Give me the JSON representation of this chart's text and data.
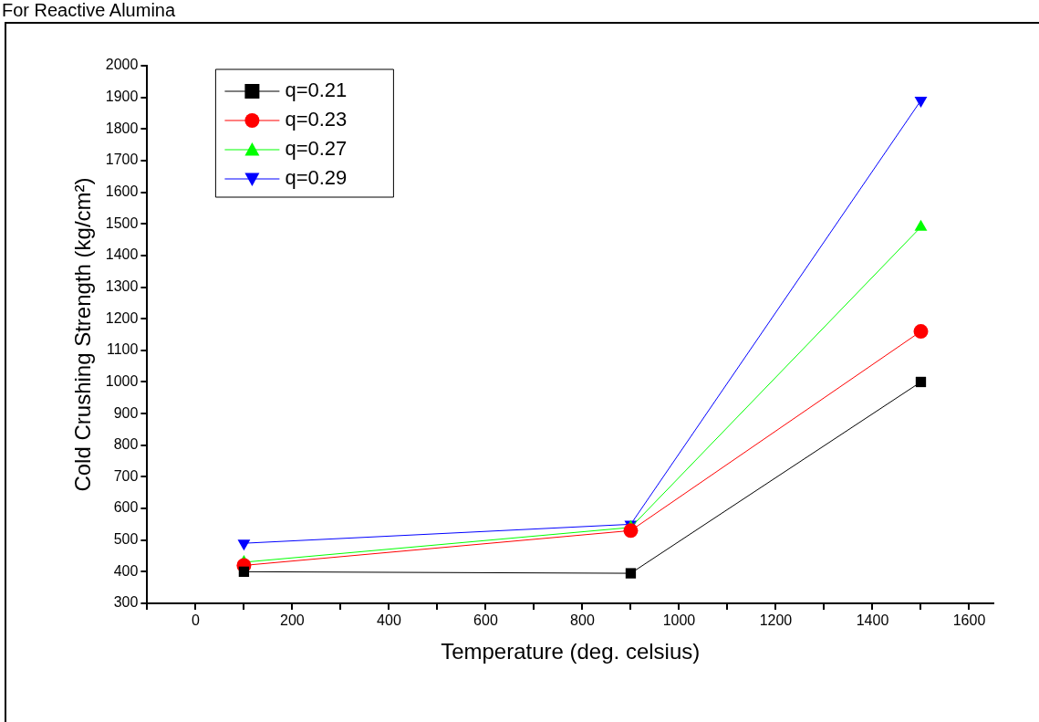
{
  "chart_data": {
    "type": "line",
    "title": "For Reactive Alumina",
    "xlabel": "Temperature (deg. celsius)",
    "ylabel": "Cold Crushing Strength (kg/cm²)",
    "x": [
      100,
      900,
      1500
    ],
    "series": [
      {
        "name": "q=0.21",
        "color": "#000000",
        "marker": "square",
        "values": [
          400,
          395,
          1000
        ]
      },
      {
        "name": "q=0.23",
        "color": "#ff0000",
        "marker": "circle",
        "values": [
          420,
          530,
          1160
        ]
      },
      {
        "name": "q=0.27",
        "color": "#00ff00",
        "marker": "triangle",
        "values": [
          430,
          540,
          1490
        ]
      },
      {
        "name": "q=0.29",
        "color": "#0000ff",
        "marker": "triangle-down",
        "values": [
          490,
          550,
          1890
        ]
      }
    ],
    "xlim": [
      -100,
      1650
    ],
    "xticks": [
      {
        "value": -100,
        "label": null
      },
      0,
      {
        "value": 100,
        "label": null
      },
      200,
      {
        "value": 300,
        "label": null
      },
      400,
      {
        "value": 500,
        "label": null
      },
      600,
      {
        "value": 700,
        "label": null
      },
      800,
      {
        "value": 900,
        "label": null
      },
      1000,
      {
        "value": 1100,
        "label": null
      },
      1200,
      {
        "value": 1300,
        "label": null
      },
      1400,
      {
        "value": 1500,
        "label": null
      },
      1600
    ],
    "ylim": [
      300,
      2000
    ],
    "yticks": [
      300,
      400,
      500,
      600,
      700,
      800,
      900,
      1000,
      1100,
      1200,
      1300,
      1400,
      1500,
      1600,
      1700,
      1800,
      1900,
      2000
    ],
    "grid": false,
    "legend": "top left",
    "line_style": "solid"
  }
}
